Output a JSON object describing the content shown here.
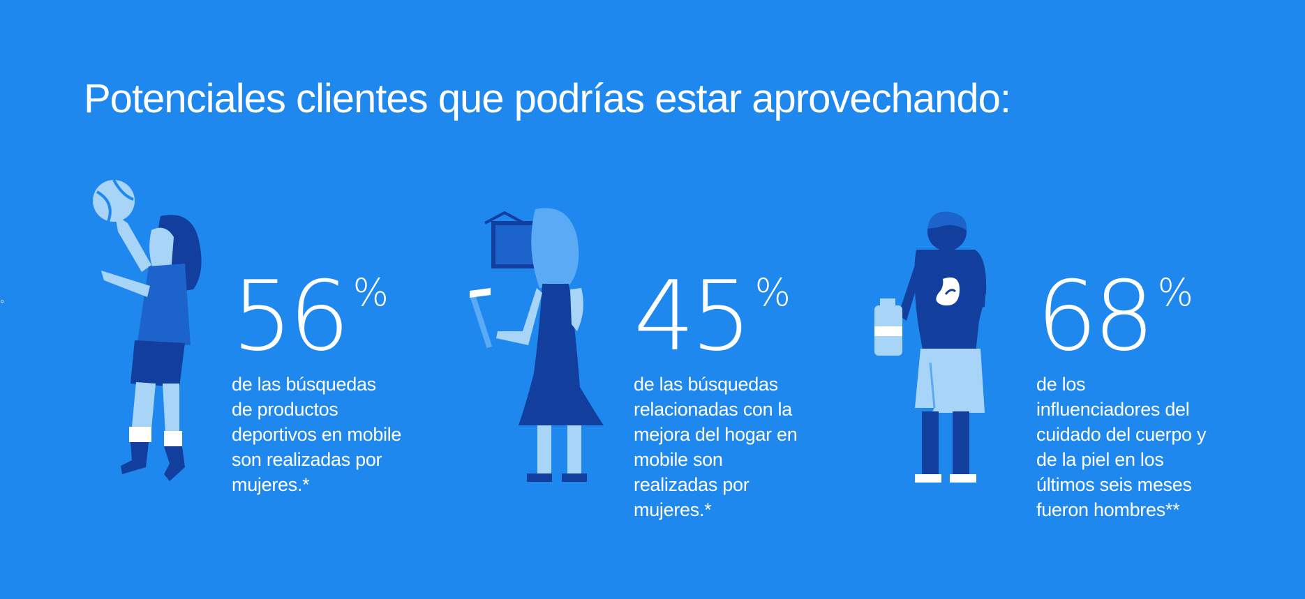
{
  "title": "Potenciales clientes que podrías estar aprovechando:",
  "edge_mark": "°",
  "stats": [
    {
      "value": "56",
      "unit": "%",
      "lines": [
        "de las búsquedas",
        "de productos",
        "deportivos en mobile",
        "son realizadas por",
        "mujeres.*"
      ],
      "illustration": "woman-volleyball-icon"
    },
    {
      "value": "45",
      "unit": "%",
      "lines": [
        "de las búsquedas",
        "relacionadas con la",
        "mejora del hogar en",
        "mobile son",
        "realizadas por",
        "mujeres.*"
      ],
      "illustration": "woman-hammer-frame-icon"
    },
    {
      "value": "68",
      "unit": "%",
      "lines": [
        "de los",
        "influenciadores del",
        "cuidado del cuerpo y",
        "de la piel en los",
        "últimos seis meses",
        "fueron hombres**"
      ],
      "illustration": "man-towel-lotion-icon"
    }
  ],
  "colors": {
    "background": "#1e88ee",
    "navy": "#123f9e",
    "mid_blue": "#1c63cc",
    "light_blue": "#a8d4f7",
    "hair_light": "#5aaaf5",
    "white": "#ffffff"
  }
}
